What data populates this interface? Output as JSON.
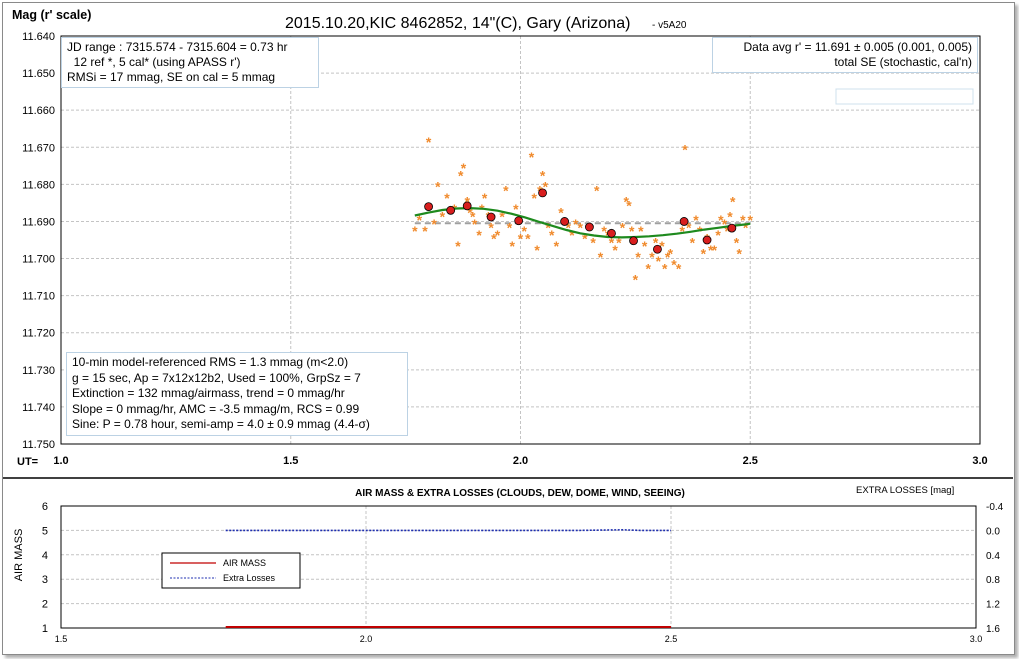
{
  "chart_data": [
    {
      "type": "scatter",
      "title": "2015.10.20,KIC 8462852, 14\"(C), Gary (Arizona)",
      "title_suffix": "- v5A20",
      "ylabel": "Mag (r' scale)",
      "xlabel_prefix": "UT=",
      "xlim": [
        1.0,
        3.0
      ],
      "ylim": [
        11.75,
        11.64
      ],
      "y_inverted": true,
      "grid": true,
      "x_ticks": [
        "1.0",
        "1.5",
        "2.0",
        "2.5",
        "3.0"
      ],
      "y_ticks": [
        "11.640",
        "11.650",
        "11.660",
        "11.670",
        "11.680",
        "11.690",
        "11.700",
        "11.710",
        "11.720",
        "11.730",
        "11.740",
        "11.750"
      ],
      "series": [
        {
          "marker": "asterisk",
          "color": "#f08a2c",
          "points": [
            [
              1.77,
              11.6925
            ],
            [
              1.78,
              11.6895
            ],
            [
              1.792,
              11.6925
            ],
            [
              1.8,
              11.6685
            ],
            [
              1.812,
              11.6905
            ],
            [
              1.82,
              11.6805
            ],
            [
              1.83,
              11.6885
            ],
            [
              1.84,
              11.6835
            ],
            [
              1.848,
              11.6875
            ],
            [
              1.856,
              11.6865
            ],
            [
              1.864,
              11.6965
            ],
            [
              1.87,
              11.6775
            ],
            [
              1.876,
              11.6755
            ],
            [
              1.884,
              11.6845
            ],
            [
              1.89,
              11.6875
            ],
            [
              1.896,
              11.6885
            ],
            [
              1.9,
              11.6905
            ],
            [
              1.91,
              11.6935
            ],
            [
              1.916,
              11.6865
            ],
            [
              1.922,
              11.6835
            ],
            [
              1.93,
              11.6885
            ],
            [
              1.936,
              11.6915
            ],
            [
              1.942,
              11.6945
            ],
            [
              1.95,
              11.6935
            ],
            [
              1.96,
              11.6885
            ],
            [
              1.968,
              11.6815
            ],
            [
              1.976,
              11.6915
            ],
            [
              1.982,
              11.6965
            ],
            [
              1.99,
              11.6865
            ],
            [
              2.0,
              11.6945
            ],
            [
              2.008,
              11.6925
            ],
            [
              2.016,
              11.6945
            ],
            [
              2.024,
              11.6725
            ],
            [
              2.03,
              11.6835
            ],
            [
              2.036,
              11.6975
            ],
            [
              2.042,
              11.6815
            ],
            [
              2.048,
              11.6775
            ],
            [
              2.054,
              11.6805
            ],
            [
              2.06,
              11.6915
            ],
            [
              2.068,
              11.6935
            ],
            [
              2.078,
              11.6965
            ],
            [
              2.088,
              11.6875
            ],
            [
              2.096,
              11.6905
            ],
            [
              2.104,
              11.6915
            ],
            [
              2.112,
              11.6935
            ],
            [
              2.12,
              11.6905
            ],
            [
              2.13,
              11.6915
            ],
            [
              2.14,
              11.6945
            ],
            [
              2.148,
              11.6915
            ],
            [
              2.158,
              11.6955
            ],
            [
              2.166,
              11.6815
            ],
            [
              2.174,
              11.6995
            ],
            [
              2.182,
              11.6925
            ],
            [
              2.19,
              11.6935
            ],
            [
              2.198,
              11.6955
            ],
            [
              2.206,
              11.6975
            ],
            [
              2.214,
              11.6955
            ],
            [
              2.222,
              11.6915
            ],
            [
              2.23,
              11.6845
            ],
            [
              2.236,
              11.6855
            ],
            [
              2.242,
              11.6925
            ],
            [
              2.25,
              11.7055
            ],
            [
              2.256,
              11.6995
            ],
            [
              2.262,
              11.6925
            ],
            [
              2.27,
              11.6965
            ],
            [
              2.278,
              11.7025
            ],
            [
              2.286,
              11.6995
            ],
            [
              2.294,
              11.6955
            ],
            [
              2.3,
              11.7005
            ],
            [
              2.308,
              11.6965
            ],
            [
              2.314,
              11.7025
            ],
            [
              2.32,
              11.6995
            ],
            [
              2.326,
              11.6985
            ],
            [
              2.334,
              11.7015
            ],
            [
              2.344,
              11.7025
            ],
            [
              2.352,
              11.6925
            ],
            [
              2.358,
              11.6705
            ],
            [
              2.366,
              11.6915
            ],
            [
              2.374,
              11.6955
            ],
            [
              2.382,
              11.6895
            ],
            [
              2.39,
              11.6925
            ],
            [
              2.398,
              11.6985
            ],
            [
              2.406,
              11.6945
            ],
            [
              2.414,
              11.6975
            ],
            [
              2.422,
              11.6975
            ],
            [
              2.43,
              11.6935
            ],
            [
              2.436,
              11.6895
            ],
            [
              2.444,
              11.6905
            ],
            [
              2.45,
              11.6925
            ],
            [
              2.456,
              11.6885
            ],
            [
              2.462,
              11.6845
            ],
            [
              2.47,
              11.6955
            ],
            [
              2.476,
              11.6985
            ],
            [
              2.484,
              11.6895
            ],
            [
              2.49,
              11.6915
            ],
            [
              2.5,
              11.6895
            ]
          ]
        },
        {
          "marker": "circle",
          "color": "#d81e1e",
          "points": [
            [
              1.8,
              11.686
            ],
            [
              1.848,
              11.687
            ],
            [
              1.884,
              11.6858
            ],
            [
              1.936,
              11.6888
            ],
            [
              1.996,
              11.6898
            ],
            [
              2.048,
              11.6823
            ],
            [
              2.096,
              11.69
            ],
            [
              2.15,
              11.6915
            ],
            [
              2.198,
              11.6932
            ],
            [
              2.246,
              11.6952
            ],
            [
              2.298,
              11.6975
            ],
            [
              2.356,
              11.69
            ],
            [
              2.406,
              11.695
            ],
            [
              2.46,
              11.6918
            ]
          ]
        },
        {
          "marker": "line",
          "color": "#1e8a1e",
          "points": [
            [
              1.77,
              11.6884
            ],
            [
              1.8,
              11.6876
            ],
            [
              1.83,
              11.6869
            ],
            [
              1.86,
              11.6865
            ],
            [
              1.89,
              11.6864
            ],
            [
              1.92,
              11.6866
            ],
            [
              1.95,
              11.6871
            ],
            [
              1.98,
              11.6879
            ],
            [
              2.01,
              11.6889
            ],
            [
              2.04,
              11.6901
            ],
            [
              2.07,
              11.6912
            ],
            [
              2.1,
              11.6923
            ],
            [
              2.13,
              11.6932
            ],
            [
              2.16,
              11.6938
            ],
            [
              2.19,
              11.6942
            ],
            [
              2.22,
              11.6943
            ],
            [
              2.25,
              11.6942
            ],
            [
              2.28,
              11.694
            ],
            [
              2.31,
              11.6937
            ],
            [
              2.34,
              11.6933
            ],
            [
              2.37,
              11.6928
            ],
            [
              2.4,
              11.6922
            ],
            [
              2.43,
              11.6917
            ],
            [
              2.46,
              11.6912
            ],
            [
              2.49,
              11.6908
            ],
            [
              2.5,
              11.6906
            ]
          ]
        },
        {
          "marker": "dashed-line",
          "color": "#a0a0a0",
          "points": [
            [
              1.77,
              11.6905
            ],
            [
              2.5,
              11.6905
            ]
          ]
        }
      ],
      "annotations": {
        "top_left": [
          "JD range : 7315.574 - 7315.604 = 0.73 hr",
          "  12 ref *, 5 cal* (using APASS r')",
          "RMSi = 17 mmag, SE on cal = 5 mmag"
        ],
        "top_right": [
          "Data avg r' = 11.691 ± 0.005 (0.001, 0.005)",
          "total SE (stochastic, cal'n)"
        ],
        "bottom_left": [
          "10-min model-referenced RMS = 1.3 mmag (m<2.0)",
          "g = 15 sec, Ap = 7x12x12b2, Used = 100%,  GrpSz = 7",
          "Extinction = 132 mmag/airmass, trend = 0 mmag/hr",
          "Slope = 0 mmag/hr, AMC = -3.5 mmag/m, RCS = 0.99",
          "Sine: P = 0.78 hour, semi-amp = 4.0 ± 0.9 mmag (4.4-σ)"
        ]
      }
    },
    {
      "type": "line",
      "title": "AIR MASS & EXTRA LOSSES (CLOUDS, DEW, DOME, WIND, SEEING)",
      "ylabel": "AIR MASS",
      "y2label": "EXTRA LOSSES [mag]",
      "xlim": [
        1.5,
        3.0
      ],
      "ylim": [
        1,
        6
      ],
      "y2lim": [
        1.6,
        -0.4
      ],
      "grid": true,
      "x_ticks": [
        "1.5",
        "2.0",
        "2.5",
        "3.0"
      ],
      "y_ticks": [
        "1",
        "2",
        "3",
        "4",
        "5",
        "6"
      ],
      "y2_ticks": [
        "1.6",
        "1.2",
        "0.8",
        "0.4",
        "0.0",
        "-0.4"
      ],
      "legend": [
        "AIR MASS",
        "Extra Losses"
      ],
      "legend_position": "left",
      "series": [
        {
          "name": "AIR MASS",
          "axis": "left",
          "color": "#c00000",
          "x": [
            1.77,
            2.5
          ],
          "y": [
            1.0,
            1.0
          ]
        },
        {
          "name": "Extra Losses",
          "axis": "right",
          "color": "#1f2fb0",
          "x": [
            1.77,
            1.85,
            1.95,
            2.05,
            2.15,
            2.25,
            2.35,
            2.42,
            2.45,
            2.5
          ],
          "y": [
            0.0,
            0.0,
            0.0,
            0.0,
            0.0,
            0.0,
            0.0,
            -0.01,
            0.0,
            0.0
          ]
        }
      ]
    }
  ]
}
